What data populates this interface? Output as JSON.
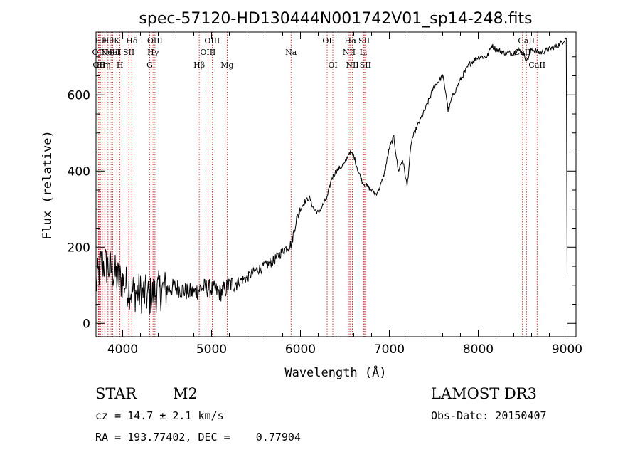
{
  "chart_data": {
    "type": "line",
    "title": "spec-57120-HD130444N001742V01_sp14-248.fits",
    "xlabel": "Wavelength (Å)",
    "ylabel": "Flux (relative)",
    "xlim": [
      3700,
      9100
    ],
    "ylim": [
      -35,
      765
    ],
    "x_ticks": [
      4000,
      5000,
      6000,
      7000,
      8000,
      9000
    ],
    "y_ticks": [
      0,
      200,
      400,
      600
    ],
    "grid": false,
    "series": [
      {
        "color": "#000000",
        "x": [
          3700,
          3760,
          3820,
          3880,
          3940,
          4000,
          4100,
          4200,
          4300,
          4400,
          4500,
          4600,
          4700,
          4800,
          4900,
          5000,
          5100,
          5200,
          5300,
          5400,
          5500,
          5600,
          5700,
          5800,
          5850,
          5900,
          5950,
          6000,
          6050,
          6100,
          6150,
          6200,
          6250,
          6300,
          6350,
          6400,
          6450,
          6500,
          6550,
          6600,
          6650,
          6700,
          6750,
          6800,
          6850,
          6900,
          6950,
          7000,
          7050,
          7100,
          7150,
          7200,
          7250,
          7300,
          7400,
          7500,
          7600,
          7640,
          7660,
          7680,
          7700,
          7800,
          7900,
          8000,
          8100,
          8150,
          8200,
          8300,
          8400,
          8450,
          8500,
          8550,
          8600,
          8700,
          8800,
          8900,
          8950,
          8990,
          9000
        ],
        "y": [
          100,
          160,
          150,
          140,
          120,
          110,
          85,
          80,
          70,
          85,
          90,
          95,
          85,
          80,
          95,
          90,
          80,
          100,
          110,
          120,
          140,
          150,
          165,
          190,
          200,
          210,
          270,
          300,
          320,
          330,
          300,
          290,
          310,
          330,
          380,
          400,
          410,
          420,
          450,
          440,
          400,
          370,
          360,
          350,
          340,
          360,
          400,
          460,
          490,
          400,
          430,
          360,
          480,
          510,
          560,
          620,
          650,
          600,
          560,
          570,
          590,
          640,
          680,
          700,
          700,
          730,
          720,
          710,
          710,
          720,
          710,
          690,
          720,
          710,
          720,
          730,
          740,
          750,
          130
        ]
      }
    ],
    "line_markers": [
      {
        "x": 3727,
        "label": "OII",
        "row": 2
      },
      {
        "x": 3734,
        "label": "OII",
        "row": 3
      },
      {
        "x": 3750,
        "label": "Hθ",
        "row": 1
      },
      {
        "x": 3771,
        "label": "Hη",
        "row": 3
      },
      {
        "x": 3798,
        "label": "Hη",
        "row": 3
      },
      {
        "x": 3835,
        "label": "Hθ",
        "row": 1
      },
      {
        "x": 3869,
        "label": "NeIII",
        "row": 2
      },
      {
        "x": 3889,
        "label": "HeI",
        "row": 2
      },
      {
        "x": 3934,
        "label": "K",
        "row": 1
      },
      {
        "x": 3969,
        "label": "H",
        "row": 3
      },
      {
        "x": 4069,
        "label": "SII",
        "row": 2
      },
      {
        "x": 4102,
        "label": "Hδ",
        "row": 1
      },
      {
        "x": 4304,
        "label": "G",
        "row": 3
      },
      {
        "x": 4341,
        "label": "Hγ",
        "row": 2
      },
      {
        "x": 4363,
        "label": "OIII",
        "row": 1
      },
      {
        "x": 4861,
        "label": "Hβ",
        "row": 3
      },
      {
        "x": 4959,
        "label": "OIII",
        "row": 2
      },
      {
        "x": 5007,
        "label": "OIII",
        "row": 1
      },
      {
        "x": 5175,
        "label": "Mg",
        "row": 3
      },
      {
        "x": 5894,
        "label": "Na",
        "row": 2
      },
      {
        "x": 6300,
        "label": "OI",
        "row": 1
      },
      {
        "x": 6364,
        "label": "OI",
        "row": 3
      },
      {
        "x": 6548,
        "label": "NII",
        "row": 2
      },
      {
        "x": 6563,
        "label": "Hα",
        "row": 1
      },
      {
        "x": 6584,
        "label": "NII",
        "row": 3
      },
      {
        "x": 6708,
        "label": "Li",
        "row": 2
      },
      {
        "x": 6717,
        "label": "SII",
        "row": 1
      },
      {
        "x": 6731,
        "label": "SII",
        "row": 3
      },
      {
        "x": 8498,
        "label": "CaII",
        "row": 2
      },
      {
        "x": 8542,
        "label": "CaII",
        "row": 1
      },
      {
        "x": 8662,
        "label": "CaII",
        "row": 3
      }
    ]
  },
  "info": {
    "object_type": "STAR",
    "subclass": "M2",
    "survey": "LAMOST DR3",
    "redshift_text": "cz = 14.7 ± 2.1 km/s",
    "obs_date_text": "Obs-Date: 20150407",
    "coords_text": "RA = 193.77402, DEC =    0.77904"
  },
  "colors": {
    "spectrum": "#000000",
    "line_marker": "#cc0000",
    "axes": "#000000"
  }
}
